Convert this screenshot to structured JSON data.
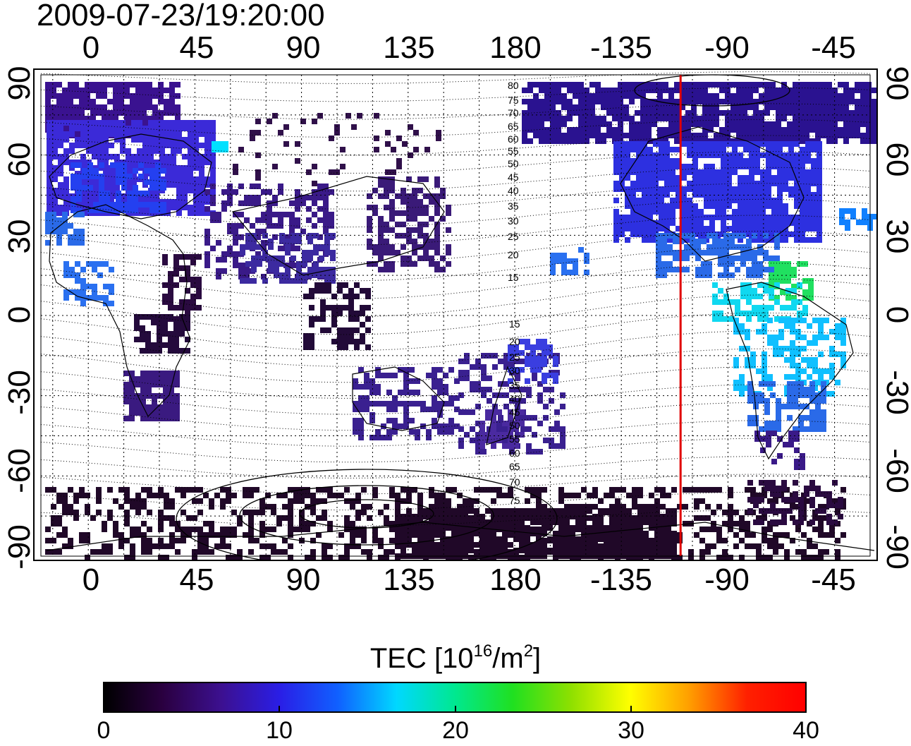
{
  "title": "2009-07-23/19:20:00",
  "top_ticks": [
    "0",
    "45",
    "90",
    "135",
    "180",
    "-135",
    "-90",
    "-45"
  ],
  "bottom_ticks": [
    "0",
    "45",
    "90",
    "135",
    "180",
    "-135",
    "-90",
    "-45"
  ],
  "left_ticks": [
    "90",
    "60",
    "30",
    "0",
    "-30",
    "-60",
    "-90"
  ],
  "right_ticks": [
    "90",
    "60",
    "30",
    "0",
    "-30",
    "-60",
    "-90"
  ],
  "contour_labels_north": [
    "80",
    "75",
    "70",
    "65",
    "60",
    "55",
    "50",
    "45",
    "40",
    "35",
    "30",
    "25",
    "20",
    "15"
  ],
  "contour_labels_south": [
    "15",
    "20",
    "25",
    "30",
    "35",
    "40",
    "45",
    "50",
    "55",
    "60",
    "65",
    "70",
    "75"
  ],
  "colorbar": {
    "title": "TEC  [10",
    "title_exp": "16",
    "title_unit": "/m",
    "title_unit_exp": "2",
    "title_end": "]",
    "ticks": [
      "0",
      "10",
      "20",
      "30",
      "40"
    ],
    "min": 0,
    "max": 40,
    "colors": [
      "#000000",
      "#2a0040",
      "#3c1090",
      "#2a1ee6",
      "#1060ff",
      "#00d8ff",
      "#00e890",
      "#20e020",
      "#90e000",
      "#ffff00",
      "#ffa000",
      "#ff2000",
      "#ff0000"
    ]
  },
  "map": {
    "lon_axis_start": -20,
    "lon_axis_end": 330,
    "lat_axis_start": -90,
    "lat_axis_end": 90,
    "terminator_longitude": -110,
    "terminator_color": "#e00000"
  }
}
